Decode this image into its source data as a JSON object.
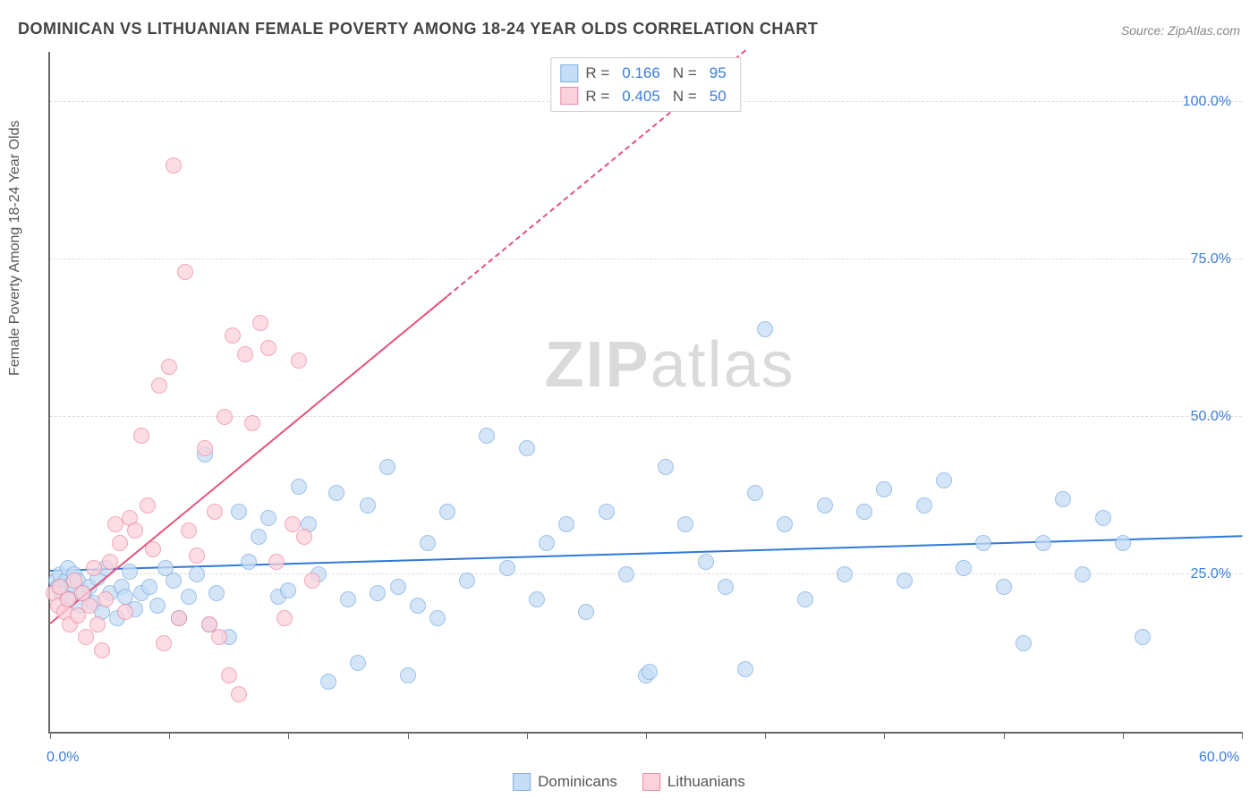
{
  "title": "DOMINICAN VS LITHUANIAN FEMALE POVERTY AMONG 18-24 YEAR OLDS CORRELATION CHART",
  "source": "Source: ZipAtlas.com",
  "watermark_zip": "ZIP",
  "watermark_atlas": "atlas",
  "chart": {
    "type": "scatter",
    "ylabel": "Female Poverty Among 18-24 Year Olds",
    "background_color": "#ffffff",
    "grid_color": "#dddddd",
    "axis_color": "#666666",
    "label_fontsize": 16,
    "tick_color": "#3b7dd8",
    "xlim": [
      0,
      60
    ],
    "ylim": [
      0,
      108
    ],
    "yticks": [
      25,
      50,
      75,
      100
    ],
    "ytick_labels": [
      "25.0%",
      "50.0%",
      "75.0%",
      "100.0%"
    ],
    "xticks": [
      0,
      6,
      12,
      18,
      24,
      30,
      36,
      42,
      48,
      54,
      60
    ],
    "xtick_labels_shown": {
      "0": "0.0%",
      "60": "60.0%"
    },
    "marker_radius": 9,
    "marker_stroke_width": 1.5,
    "series": [
      {
        "name": "Dominicans",
        "fill": "#c6ddf6",
        "stroke": "#7eaee2",
        "fill_opacity": 0.75,
        "R": "0.166",
        "N": "95",
        "trend": {
          "y_at_x0": 25.5,
          "y_at_x60": 31,
          "color": "#2f78d7",
          "width": 2.5,
          "dash": "solid",
          "extend_full": true
        },
        "points": [
          [
            0.3,
            24
          ],
          [
            0.4,
            23
          ],
          [
            0.5,
            25
          ],
          [
            0.6,
            22
          ],
          [
            0.8,
            24
          ],
          [
            0.9,
            26
          ],
          [
            1.0,
            21
          ],
          [
            1.1,
            23.5
          ],
          [
            1.2,
            25
          ],
          [
            1.4,
            24
          ],
          [
            1.5,
            20
          ],
          [
            1.7,
            22
          ],
          [
            2.0,
            23
          ],
          [
            2.2,
            20.5
          ],
          [
            2.4,
            24.5
          ],
          [
            2.6,
            19
          ],
          [
            2.8,
            26
          ],
          [
            3.0,
            22
          ],
          [
            3.4,
            18
          ],
          [
            3.6,
            23
          ],
          [
            3.8,
            21.5
          ],
          [
            4.0,
            25.5
          ],
          [
            4.3,
            19.5
          ],
          [
            4.6,
            22
          ],
          [
            5.0,
            23
          ],
          [
            5.4,
            20
          ],
          [
            5.8,
            26
          ],
          [
            6.2,
            24
          ],
          [
            6.5,
            18
          ],
          [
            7.0,
            21.5
          ],
          [
            7.4,
            25
          ],
          [
            7.8,
            44
          ],
          [
            8.0,
            17
          ],
          [
            8.4,
            22
          ],
          [
            9.0,
            15
          ],
          [
            9.5,
            35
          ],
          [
            10.0,
            27
          ],
          [
            10.5,
            31
          ],
          [
            11.0,
            34
          ],
          [
            11.5,
            21.5
          ],
          [
            12.0,
            22.5
          ],
          [
            12.5,
            39
          ],
          [
            13.0,
            33
          ],
          [
            13.5,
            25
          ],
          [
            14.0,
            8
          ],
          [
            14.4,
            38
          ],
          [
            15.0,
            21
          ],
          [
            15.5,
            11
          ],
          [
            16.0,
            36
          ],
          [
            16.5,
            22
          ],
          [
            17.0,
            42
          ],
          [
            17.5,
            23
          ],
          [
            18.0,
            9
          ],
          [
            18.5,
            20
          ],
          [
            19.0,
            30
          ],
          [
            19.5,
            18
          ],
          [
            20.0,
            35
          ],
          [
            21.0,
            24
          ],
          [
            22.0,
            47
          ],
          [
            23.0,
            26
          ],
          [
            24.0,
            45
          ],
          [
            24.5,
            21
          ],
          [
            25.0,
            30
          ],
          [
            26.0,
            33
          ],
          [
            27.0,
            19
          ],
          [
            28.0,
            35
          ],
          [
            29.0,
            25
          ],
          [
            30.0,
            9
          ],
          [
            30.2,
            9.5
          ],
          [
            31.0,
            42
          ],
          [
            32.0,
            33
          ],
          [
            33.0,
            27
          ],
          [
            34.0,
            23
          ],
          [
            35.0,
            10
          ],
          [
            35.5,
            38
          ],
          [
            36.0,
            64
          ],
          [
            37.0,
            33
          ],
          [
            38.0,
            21
          ],
          [
            39.0,
            36
          ],
          [
            40.0,
            25
          ],
          [
            41.0,
            35
          ],
          [
            42.0,
            38.5
          ],
          [
            43.0,
            24
          ],
          [
            44.0,
            36
          ],
          [
            45.0,
            40
          ],
          [
            46.0,
            26
          ],
          [
            47.0,
            30
          ],
          [
            48.0,
            23
          ],
          [
            49.0,
            14
          ],
          [
            50.0,
            30
          ],
          [
            51.0,
            37
          ],
          [
            52.0,
            25
          ],
          [
            53.0,
            34
          ],
          [
            54.0,
            30
          ],
          [
            55.0,
            15
          ]
        ]
      },
      {
        "name": "Lithuanians",
        "fill": "#fbd2db",
        "stroke": "#eb8ba3",
        "fill_opacity": 0.75,
        "R": "0.405",
        "N": "50",
        "trend": {
          "y_at_x0": 17,
          "y_at_x60": 173,
          "color": "#e5537a",
          "width": 2.5,
          "dash": "dashed",
          "solid_until_x": 20,
          "extend_full": true
        },
        "points": [
          [
            0.2,
            22
          ],
          [
            0.4,
            20
          ],
          [
            0.5,
            23
          ],
          [
            0.7,
            19
          ],
          [
            0.9,
            21
          ],
          [
            1.0,
            17
          ],
          [
            1.2,
            24
          ],
          [
            1.4,
            18.5
          ],
          [
            1.6,
            22
          ],
          [
            1.8,
            15
          ],
          [
            2.0,
            20
          ],
          [
            2.2,
            26
          ],
          [
            2.4,
            17
          ],
          [
            2.6,
            13
          ],
          [
            2.8,
            21
          ],
          [
            3.0,
            27
          ],
          [
            3.3,
            33
          ],
          [
            3.5,
            30
          ],
          [
            3.8,
            19
          ],
          [
            4.0,
            34
          ],
          [
            4.3,
            32
          ],
          [
            4.6,
            47
          ],
          [
            4.9,
            36
          ],
          [
            5.2,
            29
          ],
          [
            5.5,
            55
          ],
          [
            5.7,
            14
          ],
          [
            6.0,
            58
          ],
          [
            6.2,
            90
          ],
          [
            6.5,
            18
          ],
          [
            6.8,
            73
          ],
          [
            7.0,
            32
          ],
          [
            7.4,
            28
          ],
          [
            7.8,
            45
          ],
          [
            8.0,
            17
          ],
          [
            8.3,
            35
          ],
          [
            8.5,
            15
          ],
          [
            8.8,
            50
          ],
          [
            9.0,
            9
          ],
          [
            9.2,
            63
          ],
          [
            9.5,
            6
          ],
          [
            9.8,
            60
          ],
          [
            10.2,
            49
          ],
          [
            10.6,
            65
          ],
          [
            11.0,
            61
          ],
          [
            11.4,
            27
          ],
          [
            11.8,
            18
          ],
          [
            12.2,
            33
          ],
          [
            12.5,
            59
          ],
          [
            12.8,
            31
          ],
          [
            13.2,
            24
          ]
        ]
      }
    ]
  },
  "stats_labels": {
    "R": "R  =",
    "N": "N  ="
  },
  "bottom_legend": {
    "dominicans": "Dominicans",
    "lithuanians": "Lithuanians"
  }
}
